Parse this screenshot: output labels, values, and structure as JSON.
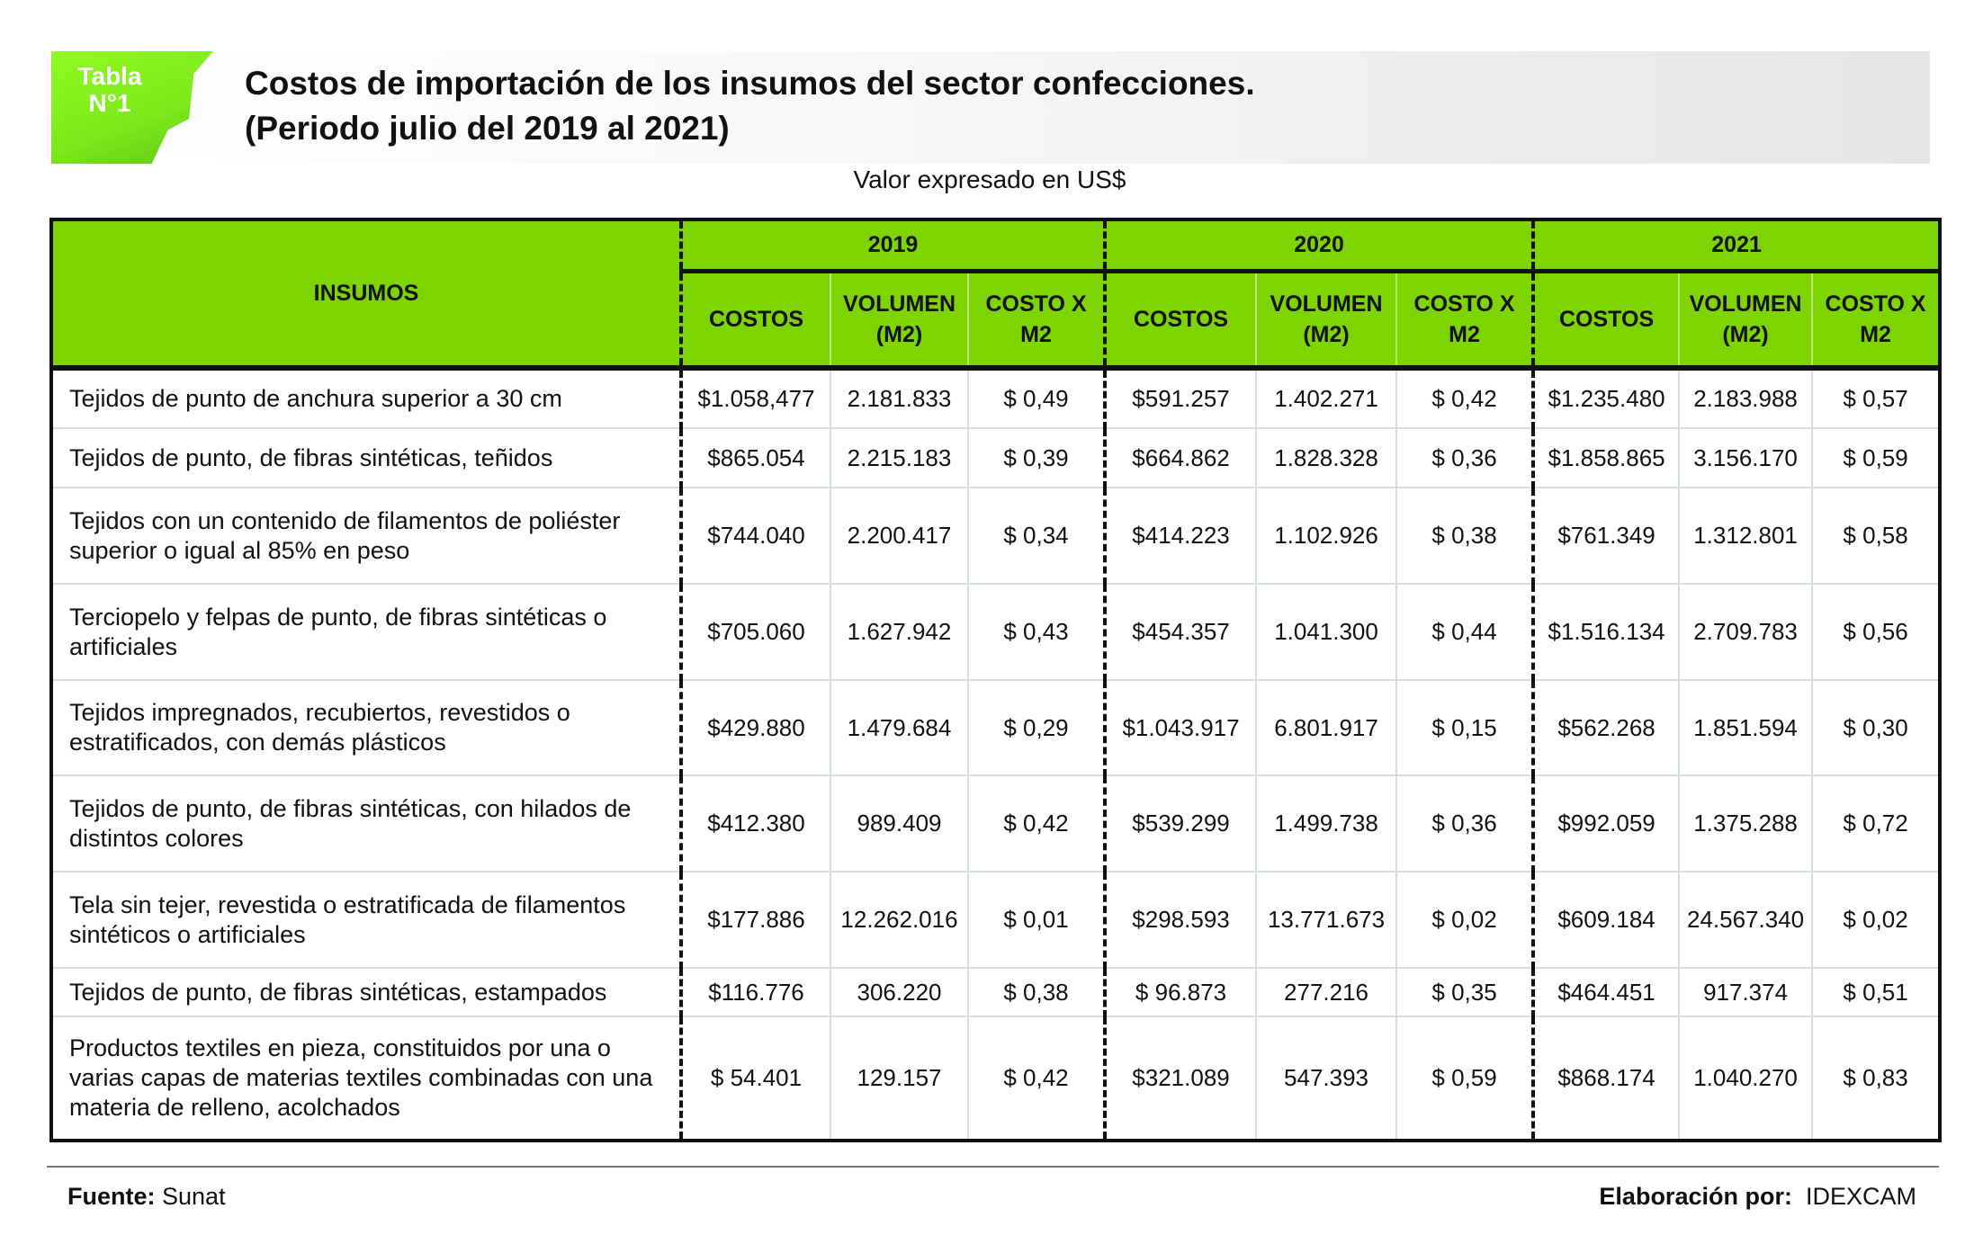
{
  "badge": {
    "line1": "Tabla",
    "line2": "N°1"
  },
  "title": {
    "line1": "Costos de importación de los insumos del sector confecciones.",
    "line2": "(Periodo julio del 2019 al 2021)"
  },
  "subtitle": "Valor expresado en US$",
  "colors": {
    "header_green": "#7ed400",
    "badge_green": "#8efc22"
  },
  "table": {
    "insumos_header": "INSUMOS",
    "years": [
      "2019",
      "2020",
      "2021"
    ],
    "subheaders": [
      [
        "COSTOS"
      ],
      [
        "VOLUMEN",
        "(M2)"
      ],
      [
        "COSTO X",
        "M2"
      ]
    ],
    "rows": [
      {
        "insumo": "Tejidos de punto de anchura superior a 30 cm",
        "values": [
          "$1.058,477",
          "2.181.833",
          "$ 0,49",
          "$591.257",
          "1.402.271",
          "$ 0,42",
          "$1.235.480",
          "2.183.988",
          "$ 0,57"
        ]
      },
      {
        "insumo": "Tejidos de punto, de fibras sintéticas, teñidos",
        "values": [
          "$865.054",
          "2.215.183",
          "$ 0,39",
          "$664.862",
          "1.828.328",
          "$ 0,36",
          "$1.858.865",
          "3.156.170",
          "$ 0,59"
        ]
      },
      {
        "insumo": "Tejidos con un contenido de filamentos de poliéster superior o igual al 85% en peso",
        "values": [
          "$744.040",
          "2.200.417",
          "$ 0,34",
          "$414.223",
          "1.102.926",
          "$ 0,38",
          "$761.349",
          "1.312.801",
          "$ 0,58"
        ]
      },
      {
        "insumo": "Terciopelo y felpas de punto, de fibras sintéticas o artificiales",
        "values": [
          "$705.060",
          "1.627.942",
          "$ 0,43",
          "$454.357",
          "1.041.300",
          "$ 0,44",
          "$1.516.134",
          "2.709.783",
          "$ 0,56"
        ]
      },
      {
        "insumo": "Tejidos impregnados, recubiertos, revestidos o estratificados, con demás plásticos",
        "values": [
          "$429.880",
          "1.479.684",
          "$ 0,29",
          "$1.043.917",
          "6.801.917",
          "$ 0,15",
          "$562.268",
          "1.851.594",
          "$ 0,30"
        ]
      },
      {
        "insumo": "Tejidos de punto, de fibras sintéticas, con hilados de distintos colores",
        "values": [
          "$412.380",
          "989.409",
          "$ 0,42",
          "$539.299",
          "1.499.738",
          "$ 0,36",
          "$992.059",
          "1.375.288",
          "$ 0,72"
        ]
      },
      {
        "insumo": "Tela sin tejer, revestida o estratificada de filamentos sintéticos o artificiales",
        "values": [
          "$177.886",
          "12.262.016",
          "$ 0,01",
          "$298.593",
          "13.771.673",
          "$ 0,02",
          "$609.184",
          "24.567.340",
          "$ 0,02"
        ]
      },
      {
        "insumo": "Tejidos de punto, de fibras sintéticas, estampados",
        "values": [
          "$116.776",
          "306.220",
          "$ 0,38",
          "$ 96.873",
          "277.216",
          "$ 0,35",
          "$464.451",
          "917.374",
          "$ 0,51"
        ]
      },
      {
        "insumo": "Productos textiles en pieza, constituidos por una o varias capas de materias textiles combinadas con una materia de relleno, acolchados",
        "values": [
          "$ 54.401",
          "129.157",
          "$ 0,42",
          "$321.089",
          "547.393",
          "$ 0,59",
          "$868.174",
          "1.040.270",
          "$ 0,83"
        ]
      }
    ]
  },
  "footer": {
    "source_label": "Fuente:",
    "source": "Sunat",
    "made_by_label": "Elaboración por:",
    "made_by": "IDEXCAM"
  }
}
